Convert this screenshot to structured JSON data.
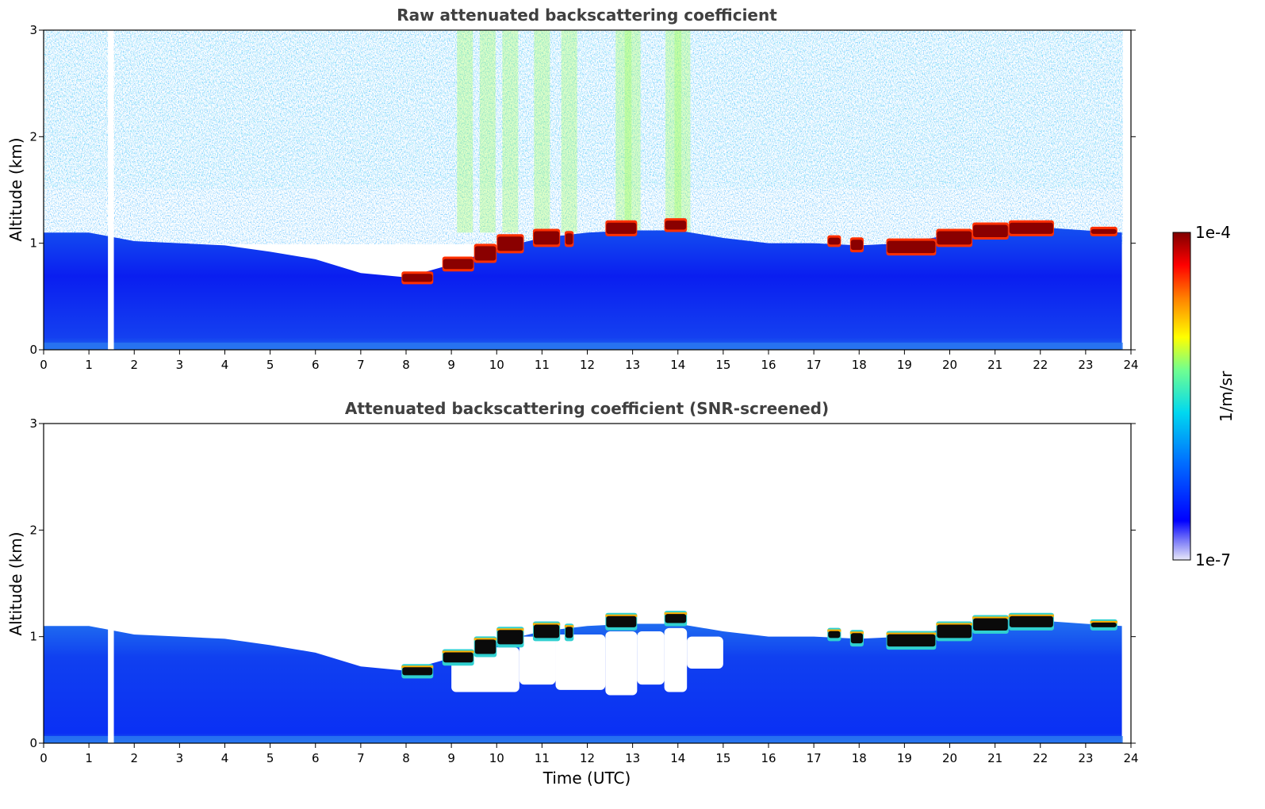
{
  "chart_data": [
    {
      "type": "heatmap",
      "title": "Raw attenuated backscattering coefficient",
      "xlabel": "",
      "ylabel": "Altitude (km)",
      "xlim": [
        0,
        24
      ],
      "ylim": [
        0,
        3
      ],
      "xticks": [
        "0",
        "1",
        "2",
        "3",
        "4",
        "5",
        "6",
        "7",
        "8",
        "9",
        "10",
        "11",
        "12",
        "13",
        "14",
        "15",
        "16",
        "17",
        "18",
        "19",
        "20",
        "21",
        "22",
        "23",
        "24"
      ],
      "yticks": [
        "0",
        "1",
        "2",
        "3"
      ],
      "data_gap_hours": [
        1.42,
        1.55
      ],
      "boundary_layer_top_km": [
        {
          "t": 0,
          "z": 1.1
        },
        {
          "t": 1,
          "z": 1.1
        },
        {
          "t": 2,
          "z": 1.02
        },
        {
          "t": 3,
          "z": 1.0
        },
        {
          "t": 4,
          "z": 0.98
        },
        {
          "t": 5,
          "z": 0.92
        },
        {
          "t": 6,
          "z": 0.85
        },
        {
          "t": 7,
          "z": 0.72
        },
        {
          "t": 8,
          "z": 0.68
        },
        {
          "t": 9,
          "z": 0.8
        },
        {
          "t": 10,
          "z": 0.95
        },
        {
          "t": 11,
          "z": 1.05
        },
        {
          "t": 12,
          "z": 1.1
        },
        {
          "t": 13,
          "z": 1.12
        },
        {
          "t": 14,
          "z": 1.12
        },
        {
          "t": 15,
          "z": 1.05
        },
        {
          "t": 16,
          "z": 1.0
        },
        {
          "t": 17,
          "z": 1.0
        },
        {
          "t": 18,
          "z": 0.98
        },
        {
          "t": 19,
          "z": 1.0
        },
        {
          "t": 20,
          "z": 1.08
        },
        {
          "t": 21,
          "z": 1.15
        },
        {
          "t": 22,
          "z": 1.15
        },
        {
          "t": 23,
          "z": 1.12
        },
        {
          "t": 23.8,
          "z": 1.1
        }
      ],
      "cloud_layers": [
        {
          "t0": 7.9,
          "t1": 8.6,
          "base": 0.63,
          "top": 0.72
        },
        {
          "t0": 8.8,
          "t1": 9.5,
          "base": 0.75,
          "top": 0.86
        },
        {
          "t0": 9.5,
          "t1": 10.0,
          "base": 0.83,
          "top": 0.98
        },
        {
          "t0": 10.0,
          "t1": 10.6,
          "base": 0.92,
          "top": 1.07
        },
        {
          "t0": 10.8,
          "t1": 11.4,
          "base": 0.98,
          "top": 1.12
        },
        {
          "t0": 11.5,
          "t1": 11.7,
          "base": 0.98,
          "top": 1.1
        },
        {
          "t0": 12.4,
          "t1": 13.1,
          "base": 1.08,
          "top": 1.2
        },
        {
          "t0": 13.7,
          "t1": 14.2,
          "base": 1.12,
          "top": 1.22
        },
        {
          "t0": 17.3,
          "t1": 17.6,
          "base": 0.98,
          "top": 1.06
        },
        {
          "t0": 17.8,
          "t1": 18.1,
          "base": 0.93,
          "top": 1.04
        },
        {
          "t0": 18.6,
          "t1": 19.7,
          "base": 0.9,
          "top": 1.03
        },
        {
          "t0": 19.7,
          "t1": 20.5,
          "base": 0.98,
          "top": 1.12
        },
        {
          "t0": 20.5,
          "t1": 21.3,
          "base": 1.05,
          "top": 1.18
        },
        {
          "t0": 21.3,
          "t1": 22.3,
          "base": 1.08,
          "top": 1.2
        },
        {
          "t0": 23.1,
          "t1": 23.7,
          "base": 1.08,
          "top": 1.14
        }
      ],
      "precipitation_streaks_hours": [
        9.3,
        9.8,
        10.3,
        11.0,
        11.6,
        12.8,
        13.0,
        13.9,
        14.1
      ]
    },
    {
      "type": "heatmap",
      "title": "Attenuated backscattering coefficient (SNR-screened)",
      "xlabel": "Time (UTC)",
      "ylabel": "Altitude (km)",
      "xlim": [
        0,
        24
      ],
      "ylim": [
        0,
        3
      ],
      "xticks": [
        "0",
        "1",
        "2",
        "3",
        "4",
        "5",
        "6",
        "7",
        "8",
        "9",
        "10",
        "11",
        "12",
        "13",
        "14",
        "15",
        "16",
        "17",
        "18",
        "19",
        "20",
        "21",
        "22",
        "23",
        "24"
      ],
      "yticks": [
        "0",
        "1",
        "2",
        "3"
      ],
      "data_gap_hours": [
        1.42,
        1.55
      ],
      "screened_out_regions": [
        {
          "t0": 9.0,
          "t1": 10.5,
          "base": 0.48,
          "top": 0.9
        },
        {
          "t0": 10.5,
          "t1": 11.3,
          "base": 0.55,
          "top": 1.0
        },
        {
          "t0": 11.3,
          "t1": 12.4,
          "base": 0.5,
          "top": 1.02
        },
        {
          "t0": 12.4,
          "t1": 13.1,
          "base": 0.45,
          "top": 1.05
        },
        {
          "t0": 13.1,
          "t1": 13.7,
          "base": 0.55,
          "top": 1.05
        },
        {
          "t0": 13.7,
          "t1": 14.2,
          "base": 0.48,
          "top": 1.08
        },
        {
          "t0": 14.2,
          "t1": 15.0,
          "base": 0.7,
          "top": 1.0
        }
      ]
    }
  ],
  "colorbar": {
    "label": "1/m/sr",
    "max_label": "1e-4",
    "min_label": "1e-7",
    "vmin": 1e-07,
    "vmax": 0.0001,
    "scale": "log",
    "colormap": "jet",
    "colors": [
      "#e8e8f8",
      "#0000ff",
      "#0090ff",
      "#00e0e0",
      "#80ff80",
      "#ffff00",
      "#ff8000",
      "#ff0000",
      "#800000"
    ]
  }
}
